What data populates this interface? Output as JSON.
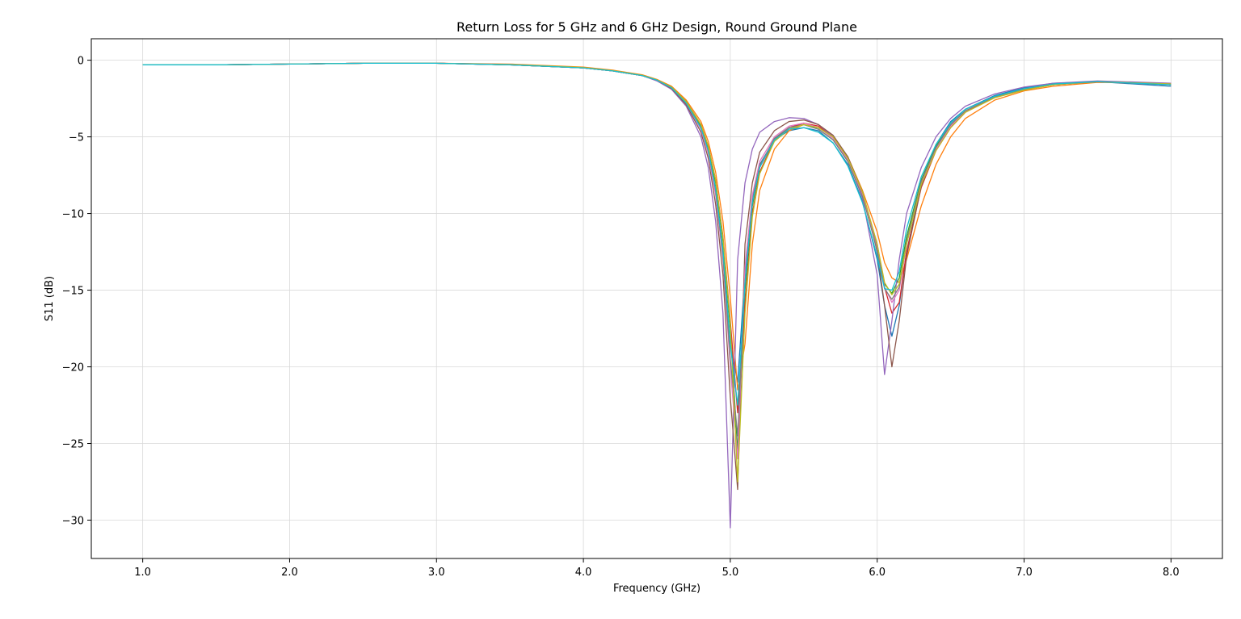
{
  "chart_data": {
    "type": "line",
    "title": "Return Loss for 5 GHz and 6 GHz Design, Round Ground Plane",
    "xlabel": "Frequency (GHz)",
    "ylabel": "S11 (dB)",
    "xlim": [
      0.65,
      8.35
    ],
    "ylim": [
      -32.5,
      1.4
    ],
    "xticks": [
      1.0,
      2.0,
      3.0,
      4.0,
      5.0,
      6.0,
      7.0,
      8.0
    ],
    "xtick_labels": [
      "1.0",
      "2.0",
      "3.0",
      "4.0",
      "5.0",
      "6.0",
      "7.0",
      "8.0"
    ],
    "yticks": [
      0,
      -5,
      -10,
      -15,
      -20,
      -25,
      -30
    ],
    "ytick_labels": [
      "0",
      "−5",
      "−10",
      "−15",
      "−20",
      "−25",
      "−30"
    ],
    "grid": true,
    "legend": "none",
    "x": [
      1.0,
      1.5,
      2.0,
      2.5,
      3.0,
      3.5,
      4.0,
      4.2,
      4.4,
      4.5,
      4.6,
      4.7,
      4.8,
      4.85,
      4.9,
      4.95,
      5.0,
      5.05,
      5.1,
      5.15,
      5.2,
      5.3,
      5.4,
      5.5,
      5.6,
      5.7,
      5.8,
      5.9,
      6.0,
      6.05,
      6.1,
      6.15,
      6.2,
      6.3,
      6.4,
      6.5,
      6.6,
      6.8,
      7.0,
      7.2,
      7.5,
      8.0
    ],
    "series": [
      {
        "color": "#1f77b4",
        "values": [
          -0.3,
          -0.3,
          -0.25,
          -0.2,
          -0.2,
          -0.3,
          -0.5,
          -0.7,
          -1.0,
          -1.3,
          -1.8,
          -2.8,
          -4.5,
          -6.0,
          -8.5,
          -12.5,
          -18.5,
          -21.0,
          -14.0,
          -9.0,
          -6.8,
          -5.2,
          -4.6,
          -4.4,
          -4.6,
          -5.4,
          -6.8,
          -9.2,
          -13.0,
          -16.0,
          -18.0,
          -16.0,
          -12.5,
          -8.2,
          -5.5,
          -4.0,
          -3.2,
          -2.3,
          -1.8,
          -1.5,
          -1.4,
          -1.7
        ]
      },
      {
        "color": "#ff7f0e",
        "values": [
          -0.3,
          -0.3,
          -0.25,
          -0.2,
          -0.2,
          -0.25,
          -0.45,
          -0.65,
          -0.95,
          -1.25,
          -1.7,
          -2.6,
          -4.0,
          -5.3,
          -7.3,
          -10.5,
          -15.5,
          -21.5,
          -18.5,
          -12.0,
          -8.5,
          -5.8,
          -4.6,
          -4.2,
          -4.4,
          -5.0,
          -6.3,
          -8.5,
          -11.2,
          -13.2,
          -14.2,
          -14.5,
          -13.0,
          -9.5,
          -6.8,
          -5.0,
          -3.8,
          -2.6,
          -2.0,
          -1.7,
          -1.45,
          -1.5
        ]
      },
      {
        "color": "#2ca02c",
        "values": [
          -0.3,
          -0.3,
          -0.25,
          -0.2,
          -0.2,
          -0.3,
          -0.5,
          -0.7,
          -1.0,
          -1.3,
          -1.8,
          -2.7,
          -4.3,
          -5.7,
          -8.0,
          -11.8,
          -17.5,
          -25.5,
          -15.0,
          -9.5,
          -7.0,
          -5.1,
          -4.4,
          -4.2,
          -4.5,
          -5.2,
          -6.6,
          -8.9,
          -12.2,
          -14.6,
          -15.2,
          -14.2,
          -11.5,
          -7.8,
          -5.6,
          -4.2,
          -3.3,
          -2.4,
          -1.9,
          -1.6,
          -1.4,
          -1.6
        ]
      },
      {
        "color": "#d62728",
        "values": [
          -0.3,
          -0.3,
          -0.25,
          -0.2,
          -0.2,
          -0.28,
          -0.5,
          -0.7,
          -1.0,
          -1.3,
          -1.75,
          -2.7,
          -4.2,
          -5.6,
          -7.8,
          -11.5,
          -17.0,
          -23.0,
          -16.0,
          -10.0,
          -7.3,
          -5.2,
          -4.4,
          -4.1,
          -4.3,
          -5.0,
          -6.4,
          -8.7,
          -12.0,
          -14.8,
          -16.5,
          -15.8,
          -12.5,
          -8.3,
          -5.9,
          -4.4,
          -3.4,
          -2.4,
          -1.9,
          -1.6,
          -1.4,
          -1.6
        ]
      },
      {
        "color": "#9467bd",
        "values": [
          -0.3,
          -0.3,
          -0.25,
          -0.2,
          -0.2,
          -0.3,
          -0.5,
          -0.7,
          -1.0,
          -1.35,
          -1.9,
          -3.0,
          -5.0,
          -7.0,
          -10.5,
          -16.5,
          -30.5,
          -13.0,
          -8.0,
          -5.8,
          -4.7,
          -4.0,
          -3.75,
          -3.8,
          -4.2,
          -5.0,
          -6.5,
          -9.0,
          -14.0,
          -20.5,
          -17.0,
          -13.0,
          -10.0,
          -7.0,
          -5.0,
          -3.8,
          -3.0,
          -2.2,
          -1.75,
          -1.5,
          -1.35,
          -1.5
        ]
      },
      {
        "color": "#8c564b",
        "values": [
          -0.3,
          -0.3,
          -0.25,
          -0.2,
          -0.2,
          -0.3,
          -0.5,
          -0.7,
          -1.0,
          -1.3,
          -1.85,
          -2.9,
          -4.7,
          -6.4,
          -9.4,
          -14.0,
          -22.0,
          -28.0,
          -12.0,
          -8.0,
          -6.0,
          -4.6,
          -4.0,
          -3.9,
          -4.2,
          -4.9,
          -6.3,
          -8.6,
          -12.5,
          -16.0,
          -20.0,
          -17.0,
          -12.8,
          -8.2,
          -5.8,
          -4.3,
          -3.3,
          -2.4,
          -1.9,
          -1.6,
          -1.4,
          -1.6
        ]
      },
      {
        "color": "#e377c2",
        "values": [
          -0.3,
          -0.3,
          -0.25,
          -0.2,
          -0.2,
          -0.28,
          -0.5,
          -0.7,
          -1.0,
          -1.3,
          -1.8,
          -2.8,
          -4.5,
          -6.1,
          -8.8,
          -13.0,
          -20.0,
          -26.0,
          -13.5,
          -8.8,
          -6.6,
          -5.0,
          -4.3,
          -4.1,
          -4.4,
          -5.1,
          -6.5,
          -8.8,
          -12.3,
          -14.8,
          -15.8,
          -15.0,
          -12.0,
          -8.0,
          -5.8,
          -4.3,
          -3.3,
          -2.4,
          -1.9,
          -1.6,
          -1.4,
          -1.6
        ]
      },
      {
        "color": "#7f7f7f",
        "values": [
          -0.3,
          -0.3,
          -0.25,
          -0.2,
          -0.2,
          -0.3,
          -0.5,
          -0.7,
          -1.0,
          -1.3,
          -1.8,
          -2.8,
          -4.4,
          -5.9,
          -8.5,
          -12.8,
          -19.5,
          -24.5,
          -14.5,
          -9.2,
          -6.9,
          -5.1,
          -4.4,
          -4.2,
          -4.5,
          -5.2,
          -6.6,
          -8.9,
          -12.4,
          -14.9,
          -15.6,
          -14.8,
          -11.8,
          -7.9,
          -5.7,
          -4.2,
          -3.3,
          -2.4,
          -1.9,
          -1.55,
          -1.4,
          -1.6
        ]
      },
      {
        "color": "#bcbd22",
        "values": [
          -0.3,
          -0.3,
          -0.25,
          -0.2,
          -0.2,
          -0.28,
          -0.48,
          -0.68,
          -0.98,
          -1.28,
          -1.75,
          -2.7,
          -4.2,
          -5.6,
          -7.8,
          -11.6,
          -17.2,
          -27.5,
          -16.5,
          -10.2,
          -7.4,
          -5.3,
          -4.5,
          -4.2,
          -4.4,
          -5.0,
          -6.4,
          -8.6,
          -12.0,
          -14.5,
          -15.3,
          -14.6,
          -12.0,
          -8.1,
          -5.9,
          -4.4,
          -3.4,
          -2.45,
          -1.95,
          -1.6,
          -1.4,
          -1.55
        ]
      },
      {
        "color": "#17becf",
        "values": [
          -0.3,
          -0.3,
          -0.25,
          -0.2,
          -0.2,
          -0.3,
          -0.5,
          -0.7,
          -1.0,
          -1.3,
          -1.8,
          -2.8,
          -4.4,
          -5.9,
          -8.4,
          -12.4,
          -18.5,
          -22.5,
          -14.5,
          -9.3,
          -7.0,
          -5.2,
          -4.5,
          -4.4,
          -4.7,
          -5.4,
          -6.9,
          -9.3,
          -12.8,
          -14.9,
          -15.0,
          -13.8,
          -11.0,
          -7.6,
          -5.5,
          -4.1,
          -3.2,
          -2.35,
          -1.85,
          -1.55,
          -1.4,
          -1.6
        ]
      }
    ]
  }
}
